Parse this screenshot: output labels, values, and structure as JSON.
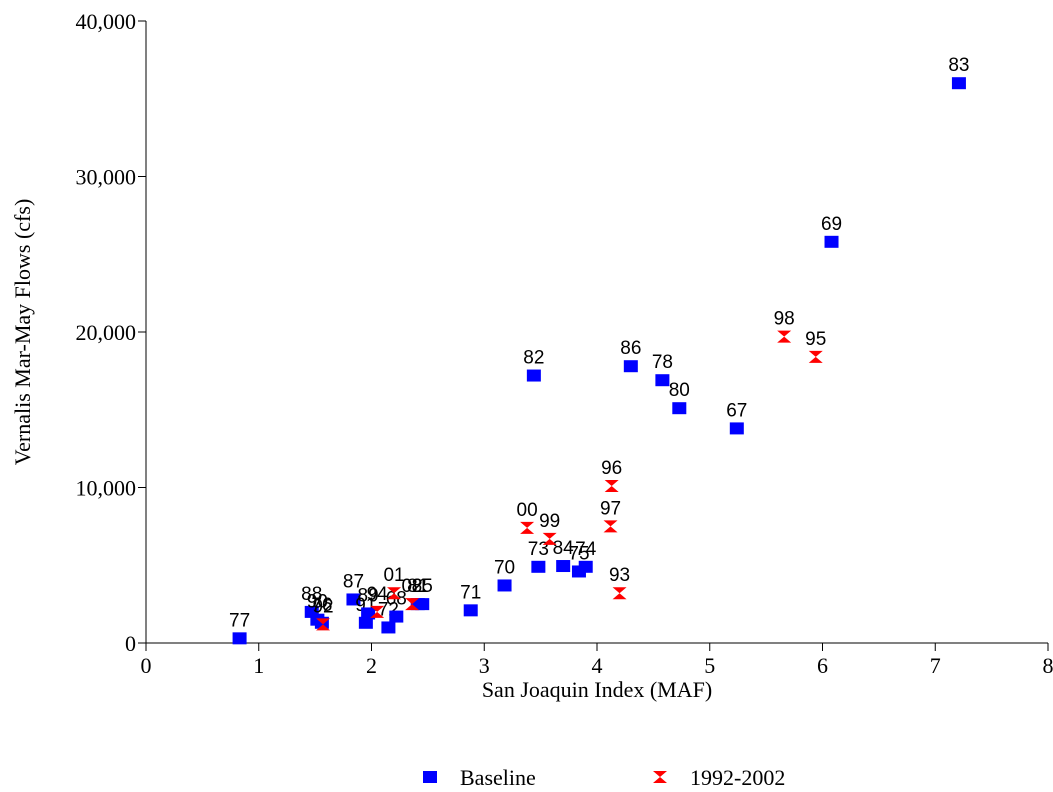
{
  "chart_data": {
    "type": "scatter",
    "x_label": "San Joaquin Index (MAF)",
    "y_label": "Vernalis Mar-May Flows (cfs)",
    "xlim": [
      0,
      8
    ],
    "xticks": [
      0,
      1,
      2,
      3,
      4,
      5,
      6,
      7,
      8
    ],
    "ylim": [
      0,
      40000
    ],
    "yticks": [
      0,
      {
        "value": 10000,
        "label": "10,000"
      },
      {
        "value": 20000,
        "label": "20,000"
      },
      {
        "value": 30000,
        "label": "30,000"
      },
      {
        "value": 40000,
        "label": "40,000"
      }
    ],
    "legend": "bottom",
    "series": [
      {
        "name": "Baseline",
        "color": "#0000ff",
        "marker": "square",
        "x": [
          0.83,
          7.21,
          6.08,
          3.44,
          4.3,
          4.58,
          4.73,
          5.24,
          3.18,
          2.88,
          3.48,
          3.7,
          3.84,
          3.9,
          1.47,
          1.52,
          1.56,
          1.84,
          1.95,
          1.97,
          2.15,
          2.22,
          2.41,
          2.45
        ],
        "values": [
          300,
          36000,
          25800,
          17200,
          17800,
          16900,
          15100,
          13800,
          3700,
          2100,
          4900,
          4950,
          4600,
          4900,
          2000,
          1500,
          1300,
          2800,
          1300,
          1900,
          1000,
          1700,
          2500,
          2500
        ],
        "labels": [
          "77",
          "83",
          "69",
          "82",
          "86",
          "78",
          "80",
          "67",
          "70",
          "71",
          "73",
          "84",
          "75",
          "74",
          "88",
          "90",
          "76",
          "87",
          "91",
          "89",
          "72",
          "68",
          "81",
          "85"
        ]
      },
      {
        "name": "1992-2002",
        "color": "#ff0000",
        "marker": "hourglass",
        "x": [
          5.66,
          5.94,
          4.13,
          4.12,
          3.38,
          3.58,
          4.2,
          2.2,
          2.05,
          2.36,
          1.57
        ],
        "values": [
          19700,
          18400,
          10100,
          7500,
          7400,
          6700,
          3200,
          3200,
          2000,
          2500,
          1200
        ],
        "labels": [
          "98",
          "95",
          "96",
          "97",
          "00",
          "99",
          "93",
          "01",
          "94",
          "02",
          "92"
        ]
      }
    ]
  }
}
